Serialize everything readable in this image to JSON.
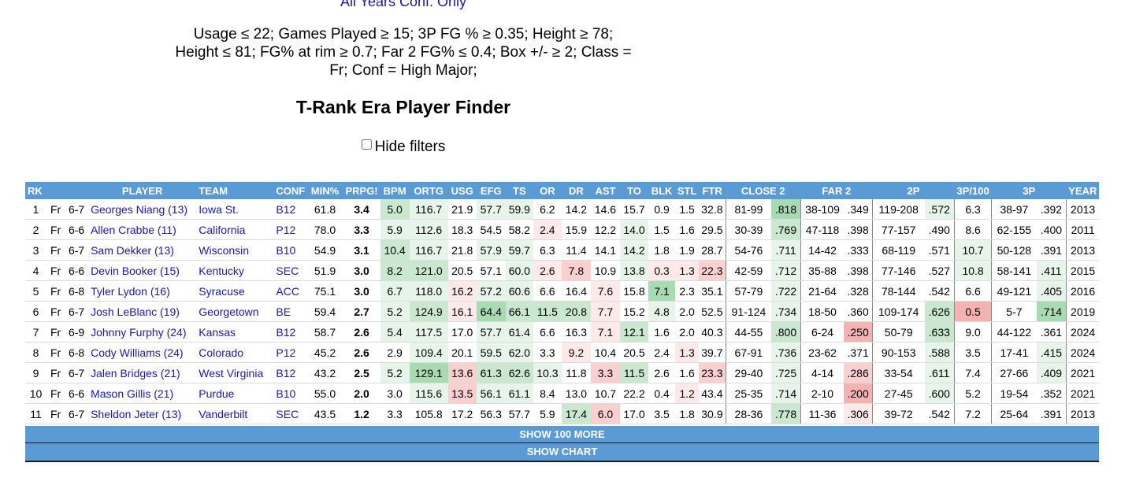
{
  "header": {
    "scope": "All Years Conf. Only",
    "criteria_lines": [
      "Usage ≤ 22; Games Played ≥ 15; 3P FG % ≥ 0.35; Height ≥ 78;",
      "Height ≤ 81; FG% at rim ≥ 0.7; Far 2 FG% ≤ 0.4; Box +/- ≥ 2; Class =",
      "Fr; Conf = High Major;"
    ],
    "title": "T-Rank Era Player Finder",
    "hide_filters_label": "Hide filters",
    "hide_filters_checked": false
  },
  "columns": [
    "RK",
    "",
    "",
    "PLAYER",
    "TEAM",
    "CONF",
    "MIN%",
    "PRPG!",
    "BPM",
    "ORTG",
    "USG",
    "EFG",
    "TS",
    "OR",
    "DR",
    "AST",
    "TO",
    "BLK",
    "STL",
    "FTR",
    "CLOSE 2",
    "",
    "FAR 2",
    "",
    "2P",
    "",
    "3P/100",
    "3P",
    "",
    "YEAR"
  ],
  "rows": [
    {
      "rk": "1",
      "cls": "Fr",
      "ht": "6-7",
      "player": "Georges Niang (13)",
      "team": "Iowa St.",
      "conf": "B12",
      "min": "61.8",
      "prpg": "3.4",
      "bpm": "5.0",
      "ortg": "116.7",
      "usg": "21.9",
      "efg": "57.7",
      "ts": "59.9",
      "or": "6.2",
      "dr": "14.2",
      "ast": "14.6",
      "to": "15.7",
      "blk": "0.9",
      "stl": "1.5",
      "ftr": "32.8",
      "c2m": "81-99",
      "c2p": ".818",
      "f2m": "38-109",
      "f2p": ".349",
      "p2m": "119-208",
      "p2p": ".572",
      "tp100": "6.3",
      "tpm": "38-97",
      "tpp": ".392",
      "year": "2013"
    },
    {
      "rk": "2",
      "cls": "Fr",
      "ht": "6-6",
      "player": "Allen Crabbe (11)",
      "team": "California",
      "conf": "P12",
      "min": "78.0",
      "prpg": "3.3",
      "bpm": "5.9",
      "ortg": "112.6",
      "usg": "18.3",
      "efg": "54.5",
      "ts": "58.2",
      "or": "2.4",
      "dr": "15.9",
      "ast": "12.2",
      "to": "14.0",
      "blk": "1.5",
      "stl": "1.6",
      "ftr": "29.5",
      "c2m": "30-39",
      "c2p": ".769",
      "f2m": "47-118",
      "f2p": ".398",
      "p2m": "77-157",
      "p2p": ".490",
      "tp100": "8.6",
      "tpm": "62-155",
      "tpp": ".400",
      "year": "2011"
    },
    {
      "rk": "3",
      "cls": "Fr",
      "ht": "6-7",
      "player": "Sam Dekker (13)",
      "team": "Wisconsin",
      "conf": "B10",
      "min": "54.9",
      "prpg": "3.1",
      "bpm": "10.4",
      "ortg": "116.7",
      "usg": "21.8",
      "efg": "57.9",
      "ts": "59.7",
      "or": "6.3",
      "dr": "11.4",
      "ast": "14.1",
      "to": "14.2",
      "blk": "1.8",
      "stl": "1.9",
      "ftr": "28.7",
      "c2m": "54-76",
      "c2p": ".711",
      "f2m": "14-42",
      "f2p": ".333",
      "p2m": "68-119",
      "p2p": ".571",
      "tp100": "10.7",
      "tpm": "50-128",
      "tpp": ".391",
      "year": "2013"
    },
    {
      "rk": "4",
      "cls": "Fr",
      "ht": "6-6",
      "player": "Devin Booker (15)",
      "team": "Kentucky",
      "conf": "SEC",
      "min": "51.9",
      "prpg": "3.0",
      "bpm": "8.2",
      "ortg": "121.0",
      "usg": "20.5",
      "efg": "57.1",
      "ts": "60.0",
      "or": "2.6",
      "dr": "7.8",
      "ast": "10.9",
      "to": "13.8",
      "blk": "0.3",
      "stl": "1.3",
      "ftr": "22.3",
      "c2m": "42-59",
      "c2p": ".712",
      "f2m": "35-88",
      "f2p": ".398",
      "p2m": "77-146",
      "p2p": ".527",
      "tp100": "10.8",
      "tpm": "58-141",
      "tpp": ".411",
      "year": "2015"
    },
    {
      "rk": "5",
      "cls": "Fr",
      "ht": "6-8",
      "player": "Tyler Lydon (16)",
      "team": "Syracuse",
      "conf": "ACC",
      "min": "75.1",
      "prpg": "3.0",
      "bpm": "6.7",
      "ortg": "118.0",
      "usg": "16.2",
      "efg": "57.2",
      "ts": "60.6",
      "or": "6.6",
      "dr": "16.4",
      "ast": "7.6",
      "to": "15.8",
      "blk": "7.1",
      "stl": "2.3",
      "ftr": "35.1",
      "c2m": "57-79",
      "c2p": ".722",
      "f2m": "21-64",
      "f2p": ".328",
      "p2m": "78-144",
      "p2p": ".542",
      "tp100": "6.6",
      "tpm": "49-121",
      "tpp": ".405",
      "year": "2016"
    },
    {
      "rk": "6",
      "cls": "Fr",
      "ht": "6-7",
      "player": "Josh LeBlanc (19)",
      "team": "Georgetown",
      "conf": "BE",
      "min": "59.4",
      "prpg": "2.7",
      "bpm": "5.2",
      "ortg": "124.9",
      "usg": "16.1",
      "efg": "64.4",
      "ts": "66.1",
      "or": "11.5",
      "dr": "20.8",
      "ast": "7.7",
      "to": "15.2",
      "blk": "4.8",
      "stl": "2.0",
      "ftr": "52.5",
      "c2m": "91-124",
      "c2p": ".734",
      "f2m": "18-50",
      "f2p": ".360",
      "p2m": "109-174",
      "p2p": ".626",
      "tp100": "0.5",
      "tpm": "5-7",
      "tpp": ".714",
      "year": "2019"
    },
    {
      "rk": "7",
      "cls": "Fr",
      "ht": "6-9",
      "player": "Johnny Furphy (24)",
      "team": "Kansas",
      "conf": "B12",
      "min": "58.7",
      "prpg": "2.6",
      "bpm": "5.4",
      "ortg": "117.5",
      "usg": "17.0",
      "efg": "57.7",
      "ts": "61.4",
      "or": "6.6",
      "dr": "16.3",
      "ast": "7.1",
      "to": "12.1",
      "blk": "1.6",
      "stl": "2.0",
      "ftr": "40.3",
      "c2m": "44-55",
      "c2p": ".800",
      "f2m": "6-24",
      "f2p": ".250",
      "p2m": "50-79",
      "p2p": ".633",
      "tp100": "9.0",
      "tpm": "44-122",
      "tpp": ".361",
      "year": "2024"
    },
    {
      "rk": "8",
      "cls": "Fr",
      "ht": "6-8",
      "player": "Cody Williams (24)",
      "team": "Colorado",
      "conf": "P12",
      "min": "45.2",
      "prpg": "2.6",
      "bpm": "2.9",
      "ortg": "109.4",
      "usg": "20.1",
      "efg": "59.5",
      "ts": "62.0",
      "or": "3.3",
      "dr": "9.2",
      "ast": "10.4",
      "to": "20.5",
      "blk": "2.4",
      "stl": "1.3",
      "ftr": "39.7",
      "c2m": "67-91",
      "c2p": ".736",
      "f2m": "23-62",
      "f2p": ".371",
      "p2m": "90-153",
      "p2p": ".588",
      "tp100": "3.5",
      "tpm": "17-41",
      "tpp": ".415",
      "year": "2024"
    },
    {
      "rk": "9",
      "cls": "Fr",
      "ht": "6-7",
      "player": "Jalen Bridges (21)",
      "team": "West Virginia",
      "conf": "B12",
      "min": "43.2",
      "prpg": "2.5",
      "bpm": "5.2",
      "ortg": "129.1",
      "usg": "13.6",
      "efg": "61.3",
      "ts": "62.6",
      "or": "10.3",
      "dr": "11.8",
      "ast": "3.3",
      "to": "11.5",
      "blk": "2.6",
      "stl": "1.6",
      "ftr": "23.3",
      "c2m": "29-40",
      "c2p": ".725",
      "f2m": "4-14",
      "f2p": ".286",
      "p2m": "33-54",
      "p2p": ".611",
      "tp100": "7.4",
      "tpm": "27-66",
      "tpp": ".409",
      "year": "2021"
    },
    {
      "rk": "10",
      "cls": "Fr",
      "ht": "6-6",
      "player": "Mason Gillis (21)",
      "team": "Purdue",
      "conf": "B10",
      "min": "55.0",
      "prpg": "2.0",
      "bpm": "3.0",
      "ortg": "115.6",
      "usg": "13.5",
      "efg": "56.1",
      "ts": "61.1",
      "or": "8.4",
      "dr": "13.0",
      "ast": "10.7",
      "to": "22.2",
      "blk": "0.4",
      "stl": "1.2",
      "ftr": "43.4",
      "c2m": "25-35",
      "c2p": ".714",
      "f2m": "2-10",
      "f2p": ".200",
      "p2m": "27-45",
      "p2p": ".600",
      "tp100": "5.2",
      "tpm": "19-54",
      "tpp": ".352",
      "year": "2021"
    },
    {
      "rk": "11",
      "cls": "Fr",
      "ht": "6-7",
      "player": "Sheldon Jeter (13)",
      "team": "Vanderbilt",
      "conf": "SEC",
      "min": "43.5",
      "prpg": "1.2",
      "bpm": "3.3",
      "ortg": "105.8",
      "usg": "17.2",
      "efg": "56.3",
      "ts": "57.7",
      "or": "5.9",
      "dr": "17.4",
      "ast": "6.0",
      "to": "17.0",
      "blk": "3.5",
      "stl": "1.8",
      "ftr": "30.9",
      "c2m": "28-36",
      "c2p": ".778",
      "f2m": "11-36",
      "f2p": ".306",
      "p2m": "39-72",
      "p2p": ".542",
      "tp100": "7.2",
      "tpm": "25-64",
      "tpp": ".391",
      "year": "2013"
    }
  ],
  "cell_colors": {
    "g1": "#e6f4e9",
    "g2": "#c9e8cf",
    "g3": "#a9dbb3",
    "r1": "#fde9e9",
    "r2": "#f9cfcf",
    "r3": "#f4b2b2"
  },
  "shading": [
    {
      "bpm": "g2",
      "ortg": "g1",
      "efg": "g1",
      "ts": "g1",
      "c2p": "g3",
      "p2p": "g1"
    },
    {
      "bpm": "g1",
      "ortg": "g1",
      "or": "r1",
      "to": "g1",
      "c2p": "g2"
    },
    {
      "bpm": "g2",
      "ortg": "g1",
      "efg": "g1",
      "ts": "g1",
      "to": "g1",
      "c2p": "g1",
      "tp100": "g1"
    },
    {
      "bpm": "g2",
      "ortg": "g2",
      "ts": "g1",
      "or": "r1",
      "dr": "r2",
      "to": "g1",
      "blk": "r1",
      "stl": "r1",
      "ftr": "r2",
      "c2p": "g1",
      "tp100": "g1",
      "tpp": "g1"
    },
    {
      "bpm": "g1",
      "ortg": "g1",
      "usg": "r1",
      "efg": "g1",
      "ts": "g1",
      "ast": "r1",
      "blk": "g3",
      "c2p": "g1",
      "tpp": "g1"
    },
    {
      "bpm": "g1",
      "ortg": "g2",
      "usg": "r1",
      "efg": "g3",
      "ts": "g2",
      "or": "g2",
      "dr": "g2",
      "ast": "r1",
      "blk": "g1",
      "c2p": "g1",
      "p2p": "g2",
      "tp100": "r3",
      "tpp": "g3"
    },
    {
      "bpm": "g1",
      "ortg": "g1",
      "efg": "g1",
      "ts": "g1",
      "ast": "r1",
      "to": "g2",
      "c2p": "g2",
      "f2p": "r3",
      "p2p": "g2"
    },
    {
      "ortg": "g1",
      "efg": "g1",
      "ts": "g1",
      "dr": "r1",
      "stl": "r1",
      "c2p": "g1",
      "p2p": "g1",
      "tpp": "g1"
    },
    {
      "bpm": "g1",
      "ortg": "g3",
      "usg": "r2",
      "efg": "g2",
      "ts": "g2",
      "or": "g1",
      "ast": "r2",
      "to": "g2",
      "ftr": "r2",
      "c2p": "g1",
      "f2p": "r2",
      "p2p": "g1",
      "tpp": "g1"
    },
    {
      "ortg": "g1",
      "usg": "r2",
      "efg": "g1",
      "ts": "g1",
      "stl": "r1",
      "c2p": "g1",
      "f2p": "r3",
      "p2p": "g1"
    },
    {
      "dr": "g2",
      "ast": "r2",
      "c2p": "g2",
      "f2p": "r1"
    }
  ],
  "footer": {
    "show_more_label": "SHOW 100 MORE",
    "show_chart_label": "SHOW CHART"
  }
}
